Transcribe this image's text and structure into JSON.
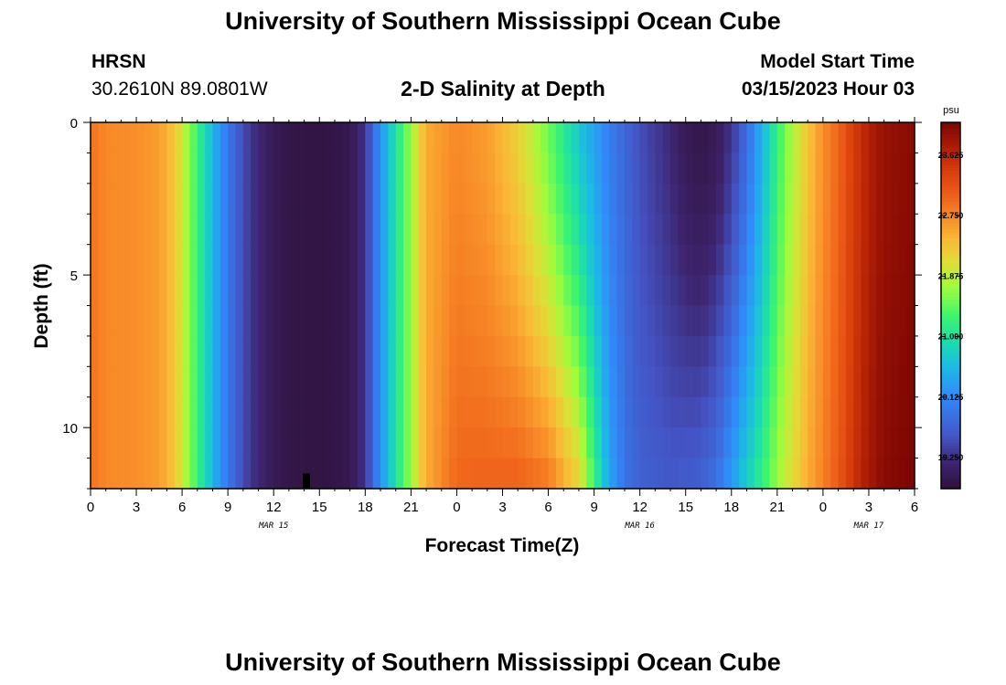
{
  "header": {
    "title": "University of Southern Mississippi Ocean Cube",
    "station_id": "HRSN",
    "coordinates": "30.2610N  89.0801W",
    "plot_title": "2-D Salinity at Depth",
    "model_start_label": "Model Start Time",
    "model_start_value": "03/15/2023 Hour 03"
  },
  "footer": {
    "title": "University of Southern Mississippi Ocean Cube"
  },
  "chart_data": {
    "type": "heatmap",
    "xlabel": "Forecast Time(Z)",
    "ylabel": "Depth (ft)",
    "x_range_hours": [
      0,
      54
    ],
    "y_range_ft": [
      0,
      12
    ],
    "y_ticks": [
      0,
      5,
      10
    ],
    "x_tick_labels": [
      "0",
      "3",
      "6",
      "9",
      "12",
      "15",
      "18",
      "21",
      "0",
      "3",
      "6",
      "9",
      "12",
      "15",
      "18",
      "21",
      "0",
      "3",
      "6"
    ],
    "x_date_labels": [
      {
        "text": "MAR 15",
        "hour": 12
      },
      {
        "text": "MAR 16",
        "hour": 36
      },
      {
        "text": "MAR 17",
        "hour": 51
      }
    ],
    "colorbar": {
      "unit": "psu",
      "min": 18.8,
      "max": 24.1,
      "ticks": [
        19.25,
        20.125,
        21.0,
        21.875,
        22.75,
        23.625
      ],
      "tick_labels": [
        "19.250",
        "20.125",
        "21.000",
        "21.875",
        "22.750",
        "23.625"
      ]
    },
    "surface_salinity_by_hour": [
      [
        0,
        22.9
      ],
      [
        1,
        22.75
      ],
      [
        3,
        22.7
      ],
      [
        4.5,
        22.6
      ],
      [
        5.5,
        22.3
      ],
      [
        6.5,
        21.6
      ],
      [
        7.5,
        20.9
      ],
      [
        8.5,
        20.2
      ],
      [
        9.5,
        19.7
      ],
      [
        10.5,
        19.3
      ],
      [
        12,
        19.0
      ],
      [
        13,
        18.9
      ],
      [
        15,
        18.85
      ],
      [
        17,
        18.95
      ],
      [
        18,
        19.3
      ],
      [
        19,
        20.2
      ],
      [
        20,
        21.0
      ],
      [
        21,
        21.7
      ],
      [
        22,
        22.5
      ],
      [
        24,
        22.75
      ],
      [
        26,
        22.6
      ],
      [
        28,
        22.2
      ],
      [
        30,
        21.5
      ],
      [
        32,
        20.7
      ],
      [
        34,
        20.0
      ],
      [
        36,
        19.5
      ],
      [
        38,
        19.2
      ],
      [
        39,
        19.0
      ],
      [
        40,
        18.9
      ],
      [
        41,
        19.0
      ],
      [
        42,
        19.3
      ],
      [
        43,
        19.8
      ],
      [
        44,
        20.5
      ],
      [
        45,
        21.2
      ],
      [
        46,
        21.8
      ],
      [
        47,
        22.3
      ],
      [
        48,
        22.7
      ],
      [
        49,
        23.0
      ],
      [
        50,
        23.4
      ],
      [
        51,
        23.7
      ],
      [
        52,
        23.9
      ],
      [
        54,
        24.0
      ]
    ],
    "bottom_salinity_by_hour": [
      [
        0,
        22.9
      ],
      [
        1,
        22.75
      ],
      [
        3,
        22.7
      ],
      [
        4.5,
        22.6
      ],
      [
        5.5,
        22.3
      ],
      [
        6.5,
        21.6
      ],
      [
        7.5,
        20.9
      ],
      [
        8.5,
        20.2
      ],
      [
        9.5,
        19.7
      ],
      [
        10.5,
        19.3
      ],
      [
        12,
        19.0
      ],
      [
        13,
        18.9
      ],
      [
        15,
        18.85
      ],
      [
        17,
        18.95
      ],
      [
        18,
        19.3
      ],
      [
        19,
        20.2
      ],
      [
        20,
        21.0
      ],
      [
        21,
        21.7
      ],
      [
        22,
        22.5
      ],
      [
        24,
        23.0
      ],
      [
        28,
        23.05
      ],
      [
        30,
        22.9
      ],
      [
        32,
        22.2
      ],
      [
        33,
        21.3
      ],
      [
        34,
        20.4
      ],
      [
        35,
        19.9
      ],
      [
        36,
        19.7
      ],
      [
        38,
        19.6
      ],
      [
        40,
        19.7
      ],
      [
        41,
        19.9
      ],
      [
        42,
        20.3
      ],
      [
        43,
        20.8
      ],
      [
        44,
        21.2
      ],
      [
        45,
        21.7
      ],
      [
        46,
        22.1
      ],
      [
        47,
        22.5
      ],
      [
        48,
        22.8
      ],
      [
        49,
        23.1
      ],
      [
        50,
        23.5
      ],
      [
        51,
        23.8
      ],
      [
        52,
        24.0
      ],
      [
        54,
        24.1
      ]
    ]
  }
}
